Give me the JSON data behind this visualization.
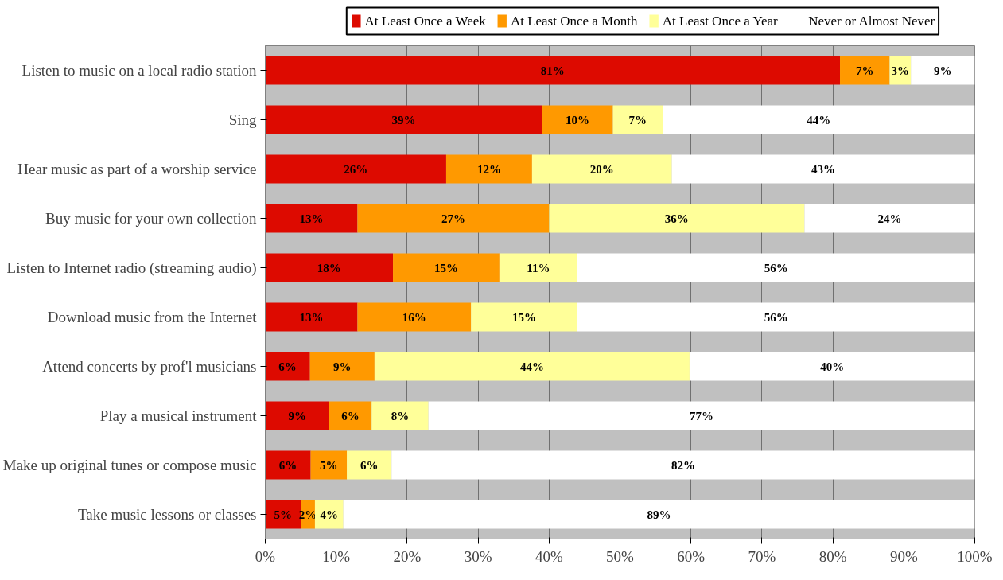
{
  "chart_data": {
    "type": "bar",
    "orientation": "horizontal",
    "stacked": true,
    "legend": "top",
    "grid": "x",
    "categories": [
      "Listen to music on a local radio station",
      "Sing",
      "Hear music as part of a worship service",
      "Buy music for your own collection",
      "Listen to Internet radio (streaming audio)",
      "Download music from the Internet",
      "Attend concerts by prof'l musicians",
      "Play a musical instrument",
      "Make up original tunes or compose music",
      "Take music lessons or classes"
    ],
    "xlim": [
      0,
      100
    ],
    "xticks": [
      {
        "value": 0,
        "label": "0%"
      },
      {
        "value": 10,
        "label": "10%"
      },
      {
        "value": 20,
        "label": "20%"
      },
      {
        "value": 30,
        "label": "30%"
      },
      {
        "value": 40,
        "label": "40%"
      },
      {
        "value": 50,
        "label": "50%"
      },
      {
        "value": 60,
        "label": "60%"
      },
      {
        "value": 70,
        "label": "70%"
      },
      {
        "value": 80,
        "label": "80%"
      },
      {
        "value": 90,
        "label": "90%"
      },
      {
        "value": 100,
        "label": "100%"
      }
    ],
    "series": [
      {
        "name": "At Least Once a Week",
        "color": "#dd0a00",
        "values": [
          81,
          39,
          25.5,
          13,
          18,
          13,
          6.3,
          9,
          6.4,
          5
        ],
        "value_labels": [
          "81%",
          "39%",
          "26%",
          "13%",
          "18%",
          "13%",
          "6%",
          "9%",
          "6%",
          "5%"
        ]
      },
      {
        "name": "At Least Once a Month",
        "color": "#ff9900",
        "values": [
          7,
          10,
          12.1,
          27,
          15,
          16,
          9.1,
          6,
          5.1,
          2
        ],
        "value_labels": [
          "7%",
          "10%",
          "12%",
          "27%",
          "15%",
          "16%",
          "9%",
          "6%",
          "5%",
          "2%"
        ]
      },
      {
        "name": "At Least Once a Year",
        "color": "#ffff99",
        "values": [
          3,
          7,
          19.7,
          36,
          11,
          15,
          44.4,
          8,
          6.3,
          4
        ],
        "value_labels": [
          "3%",
          "7%",
          "20%",
          "36%",
          "11%",
          "15%",
          "44%",
          "8%",
          "6%",
          "4%"
        ]
      },
      {
        "name": "Never or Almost Never",
        "color": "#ffffff",
        "values": [
          9,
          44,
          42.7,
          24,
          56,
          56,
          40.2,
          77,
          82.2,
          89
        ],
        "value_labels": [
          "9%",
          "44%",
          "43%",
          "24%",
          "56%",
          "56%",
          "40%",
          "77%",
          "82%",
          "89%"
        ]
      }
    ]
  }
}
